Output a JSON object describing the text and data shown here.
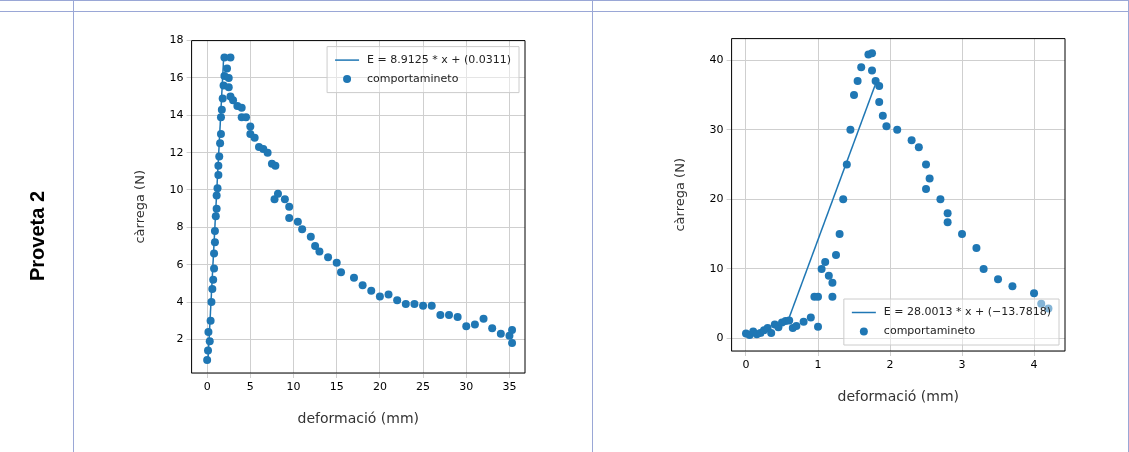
{
  "chart_data": [
    {
      "type": "scatter",
      "xlabel": "deformació (mm)",
      "ylabel": "càrrega (N)",
      "annotations": [
        "Proveta 2"
      ],
      "xlim": [
        -1.8,
        36.8
      ],
      "xticks": [
        0,
        5,
        10,
        15,
        20,
        25,
        30,
        35
      ],
      "ylim": [
        0.2,
        18
      ],
      "yticks": [
        2,
        4,
        6,
        8,
        10,
        12,
        14,
        16,
        18
      ],
      "grid": true,
      "legend": "top right",
      "series": [
        {
          "name": "E = 8.9125 * x + (0.0311)",
          "type": "line",
          "color": "#1f77b4",
          "x": [
            0.1,
            1.9
          ],
          "values": [
            0.92,
            16.97
          ]
        },
        {
          "name": "comportamineto",
          "type": "scatter",
          "marker": "circle",
          "color": "#1f77b4",
          "x": [
            0,
            0.1,
            0.15,
            0.3,
            0.4,
            0.5,
            0.6,
            0.7,
            0.8,
            0.8,
            0.9,
            0.9,
            1.0,
            1.1,
            1.1,
            1.2,
            1.3,
            1.3,
            1.4,
            1.5,
            1.6,
            1.6,
            1.7,
            1.8,
            1.9,
            2.0,
            2.0,
            2.3,
            2.5,
            2.7,
            2.5,
            2.7,
            3,
            3.5,
            4,
            4,
            4.5,
            5,
            5,
            5.5,
            6,
            6.5,
            7,
            7.5,
            7.9,
            7.8,
            8.2,
            9,
            9.5,
            9.5,
            10.5,
            11,
            12,
            12.5,
            13,
            14,
            15,
            15.5,
            17,
            18,
            19,
            20,
            21,
            22,
            23,
            24,
            25,
            26,
            27,
            28,
            29,
            30,
            31,
            32,
            33,
            34,
            35,
            35.3,
            35.3
          ],
          "values": [
            0.9,
            1.4,
            2.4,
            1.9,
            3,
            4,
            4.7,
            5.2,
            5.8,
            6.6,
            7.2,
            7.8,
            8.6,
            9.0,
            9.7,
            10.1,
            10.8,
            11.3,
            11.8,
            12.5,
            13,
            13.9,
            14.3,
            14.9,
            15.6,
            16.1,
            17.1,
            16.5,
            16,
            17.1,
            15.5,
            15,
            14.8,
            14.5,
            14.4,
            13.9,
            13.9,
            13.4,
            13,
            12.8,
            12.3,
            12.2,
            12,
            11.4,
            11.3,
            9.5,
            9.8,
            9.5,
            9.1,
            8.5,
            8.3,
            7.9,
            7.5,
            7,
            6.7,
            6.4,
            6.1,
            5.6,
            5.3,
            4.9,
            4.6,
            4.3,
            4.4,
            4.1,
            3.9,
            3.9,
            3.8,
            3.8,
            3.3,
            3.3,
            3.2,
            2.7,
            2.8,
            3.1,
            2.6,
            2.3,
            2.2,
            2.5,
            1.8
          ]
        }
      ]
    },
    {
      "type": "scatter",
      "xlabel": "deformació (mm)",
      "ylabel": "càrrega (N)",
      "xlim": [
        -0.2,
        4.43
      ],
      "xticks": [
        0,
        1,
        2,
        3,
        4
      ],
      "ylim": [
        -1.8,
        43.1
      ],
      "yticks": [
        0,
        10,
        20,
        30,
        40
      ],
      "grid": true,
      "legend": "bottom right",
      "series": [
        {
          "name": "E = 28.0013 * x + (−13.7818)",
          "type": "line",
          "color": "#1f77b4",
          "x": [
            0.6,
            1.8
          ],
          "values": [
            3,
            36.6
          ]
        },
        {
          "name": "comportamineto",
          "type": "scatter",
          "marker": "circle",
          "color": "#1f77b4",
          "x": [
            0,
            0.05,
            0.1,
            0.15,
            0.2,
            0.25,
            0.3,
            0.35,
            0.4,
            0.45,
            0.5,
            0.55,
            0.6,
            0.65,
            0.7,
            0.8,
            0.9,
            0.95,
            1.0,
            1.0,
            1.05,
            1.1,
            1.15,
            1.2,
            1.2,
            1.25,
            1.3,
            1.35,
            1.4,
            1.45,
            1.5,
            1.55,
            1.6,
            1.7,
            1.75,
            1.75,
            1.8,
            1.85,
            1.85,
            1.9,
            1.95,
            2.1,
            2.3,
            2.4,
            2.5,
            2.55,
            2.5,
            2.7,
            2.8,
            2.8,
            3.0,
            3.2,
            3.3,
            3.5,
            3.7,
            4.0,
            4.1,
            4.2
          ],
          "values": [
            0.7,
            0.5,
            1.0,
            0.6,
            0.8,
            1.2,
            1.5,
            0.8,
            2.0,
            1.6,
            2.3,
            2.5,
            2.6,
            1.5,
            1.8,
            2.4,
            3.0,
            6,
            6,
            1.7,
            10,
            11,
            9,
            8,
            6,
            12,
            15,
            20,
            25,
            30,
            35,
            37,
            39,
            40.8,
            41,
            38.5,
            37,
            36.3,
            34,
            32,
            30.5,
            30,
            28.5,
            27.5,
            25,
            23,
            21.5,
            20,
            18,
            16.7,
            15,
            13,
            10,
            8.5,
            7.5,
            6.5,
            5,
            4.3
          ]
        }
      ]
    }
  ]
}
